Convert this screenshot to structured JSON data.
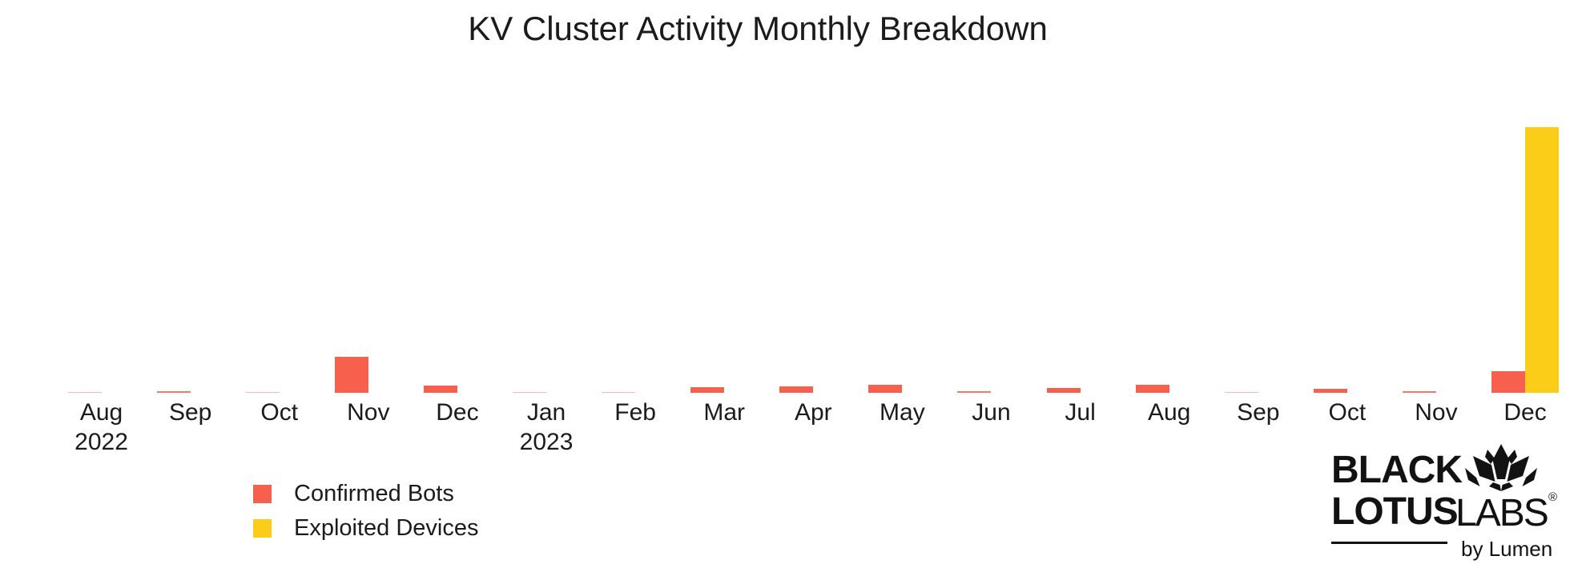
{
  "title": "KV Cluster Activity Monthly Breakdown",
  "chart_data": {
    "type": "bar",
    "title": "KV Cluster Activity Monthly Breakdown",
    "categories": [
      "Aug",
      "Sep",
      "Oct",
      "Nov",
      "Dec",
      "Jan",
      "Feb",
      "Mar",
      "Apr",
      "May",
      "Jun",
      "Jul",
      "Aug",
      "Sep",
      "Oct",
      "Nov",
      "Dec"
    ],
    "year_labels": [
      "2022",
      "",
      "",
      "",
      "",
      "2023",
      "",
      "",
      "",
      "",
      "",
      "",
      "",
      "",
      "",
      "",
      ""
    ],
    "series": [
      {
        "name": "Confirmed Bots",
        "color": "#F7604D",
        "values": [
          1,
          2,
          1,
          45,
          9,
          1,
          1.5,
          7,
          8,
          10,
          2,
          6,
          10,
          1,
          5,
          2,
          27
        ]
      },
      {
        "name": "Exploited Devices",
        "color": "#FBCC18",
        "values": [
          0,
          0,
          0,
          0,
          0,
          0,
          0,
          0,
          0,
          0,
          0,
          0,
          0,
          0,
          0,
          0,
          332
        ]
      }
    ],
    "ylim": [
      0,
      380
    ],
    "units": "relative bar height in pixels; chart displays no numeric y-axis",
    "grid": false,
    "axes_visible": false,
    "legend_position": "bottom-left"
  },
  "logo": {
    "word1": "BLACK",
    "word2": "LOTUS",
    "word3": "LABS",
    "registered": "®",
    "tagline": "by Lumen"
  }
}
